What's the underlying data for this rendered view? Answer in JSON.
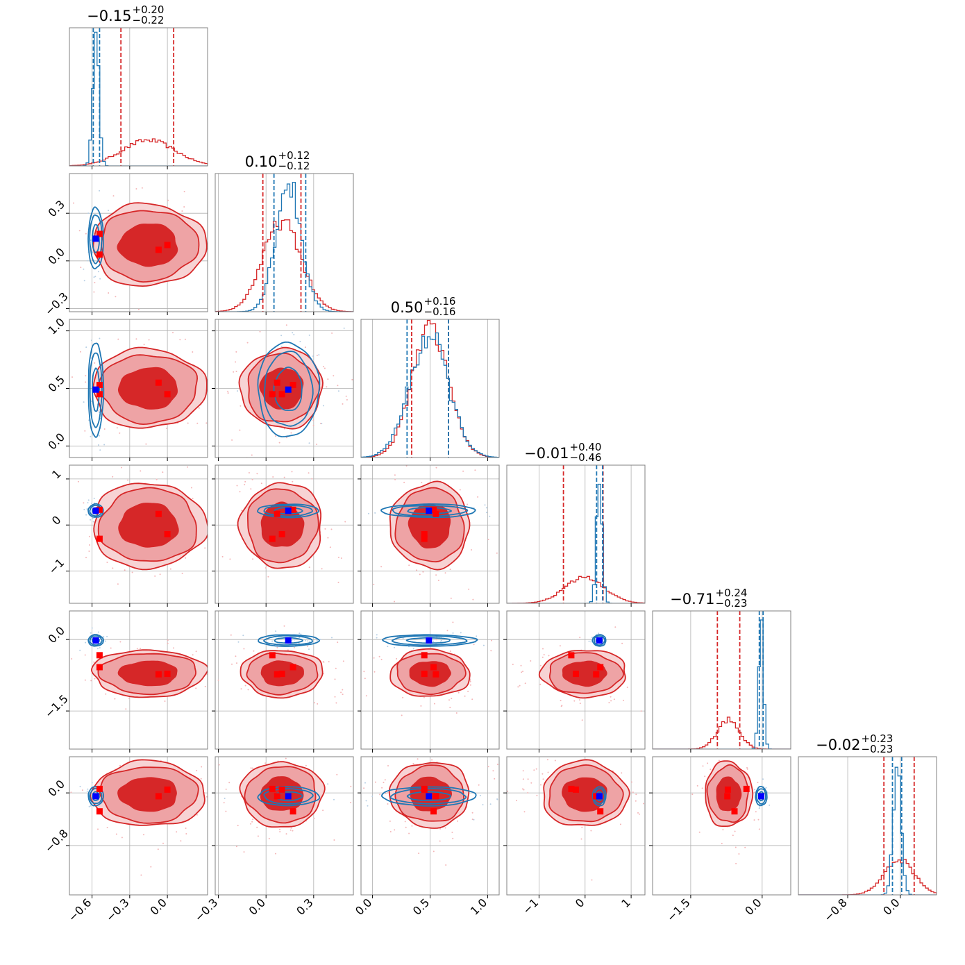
{
  "chart_data": {
    "type": "corner",
    "parameters": 6,
    "colors": {
      "red": "#d62728",
      "red_fill": "#eea3a5",
      "blue": "#1f77b4",
      "blue_marker": "#0000ff",
      "red_marker": "#ff0000"
    },
    "grid": true,
    "titles": [
      {
        "value": "−0.15",
        "plus": "+0.20",
        "minus": "−0.22"
      },
      {
        "value": "0.10",
        "plus": "+0.12",
        "minus": "−0.12"
      },
      {
        "value": "0.50",
        "plus": "+0.16",
        "minus": "−0.16"
      },
      {
        "value": "−0.01",
        "plus": "+0.40",
        "minus": "−0.46"
      },
      {
        "value": "−0.71",
        "plus": "+0.24",
        "minus": "−0.23"
      },
      {
        "value": "−0.02",
        "plus": "+0.23",
        "minus": "−0.23"
      }
    ],
    "ranges": [
      [
        -0.78,
        0.32
      ],
      [
        -0.32,
        0.55
      ],
      [
        -0.1,
        1.1
      ],
      [
        -1.7,
        1.3
      ],
      [
        -2.3,
        0.6
      ],
      [
        -1.55,
        0.55
      ]
    ],
    "ticks": [
      {
        "values": [
          -0.6,
          -0.3,
          0.0
        ],
        "labels": [
          "−0.6",
          "−0.3",
          "0.0"
        ]
      },
      {
        "values": [
          -0.3,
          0.0,
          0.3
        ],
        "labels": [
          "−0.3",
          "0.0",
          "0.3"
        ]
      },
      {
        "values": [
          0.0,
          0.5,
          1.0
        ],
        "labels": [
          "0.0",
          "0.5",
          "1.0"
        ]
      },
      {
        "values": [
          -1,
          0,
          1
        ],
        "labels": [
          "−1",
          "0",
          "1"
        ]
      },
      {
        "values": [
          -1.5,
          0.0
        ],
        "labels": [
          "−1.5",
          "0.0"
        ]
      },
      {
        "values": [
          -0.8,
          0.0
        ],
        "labels": [
          "−0.8",
          "0.0"
        ]
      }
    ],
    "red_posterior": {
      "mean": [
        -0.15,
        0.1,
        0.5,
        -0.01,
        -0.71,
        -0.02
      ],
      "sigma": [
        0.21,
        0.12,
        0.16,
        0.43,
        0.23,
        0.23
      ],
      "quantiles": [
        [
          -0.37,
          0.05
        ],
        [
          -0.02,
          0.22
        ],
        [
          0.34,
          0.66
        ],
        [
          -0.47,
          0.39
        ],
        [
          -0.94,
          -0.47
        ],
        [
          -0.25,
          0.21
        ]
      ]
    },
    "blue_posterior": {
      "mean": [
        -0.57,
        0.14,
        0.49,
        0.31,
        -0.02,
        -0.05
      ],
      "sigma": [
        0.025,
        0.08,
        0.17,
        0.06,
        0.05,
        0.06
      ],
      "quantiles": [
        [
          -0.59,
          -0.54
        ],
        [
          0.05,
          0.25
        ],
        [
          0.3,
          0.66
        ],
        [
          0.25,
          0.38
        ],
        [
          -0.06,
          0.02
        ],
        [
          -0.12,
          0.02
        ]
      ]
    },
    "truth_blue": [
      -0.57,
      0.14,
      0.49,
      0.31,
      -0.02,
      -0.05
    ],
    "truth_red": [
      [
        -0.54,
        0.17,
        0.53,
        0.33,
        -0.58,
        -0.28
      ],
      [
        -0.54,
        0.04,
        0.45,
        -0.3,
        -0.33,
        0.06
      ],
      [
        -0.07,
        0.07,
        0.55,
        0.24,
        -0.73,
        -0.05
      ],
      [
        0.0,
        0.1,
        0.45,
        -0.2,
        -0.72,
        0.05
      ]
    ]
  }
}
